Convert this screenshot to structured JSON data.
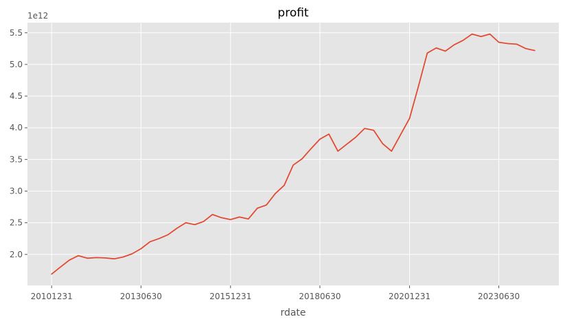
{
  "chart_data": {
    "type": "line",
    "title": "profit",
    "xlabel": "rdate",
    "ylabel": "",
    "y_offset_label": "1e12",
    "x_tick_labels": [
      "20101231",
      "20130630",
      "20151231",
      "20180630",
      "20201231",
      "20230630"
    ],
    "y_tick_labels": [
      "2.0",
      "2.5",
      "3.0",
      "3.5",
      "4.0",
      "4.5",
      "5.0",
      "5.5"
    ],
    "ylim": [
      1.51,
      5.66
    ],
    "grid": true,
    "series": [
      {
        "color": "#e24a33",
        "x": [
          "20101231",
          "20110331",
          "20110630",
          "20110930",
          "20111231",
          "20120331",
          "20120630",
          "20120930",
          "20121231",
          "20130331",
          "20130630",
          "20130930",
          "20131231",
          "20140331",
          "20140630",
          "20140930",
          "20141231",
          "20150331",
          "20150630",
          "20150930",
          "20151231",
          "20160331",
          "20160630",
          "20160930",
          "20161231",
          "20170331",
          "20170630",
          "20170930",
          "20171231",
          "20180331",
          "20180630",
          "20180930",
          "20181231",
          "20190331",
          "20190630",
          "20190930",
          "20191231",
          "20200331",
          "20200630",
          "20200930",
          "20201231",
          "20210331",
          "20210630",
          "20210930",
          "20211231",
          "20220331",
          "20220630",
          "20220930",
          "20221231",
          "20230331",
          "20230630",
          "20230930",
          "20231231",
          "20240331",
          "20240630"
        ],
        "values": [
          1.69,
          1.8,
          1.91,
          1.98,
          1.94,
          1.95,
          1.945,
          1.93,
          1.96,
          2.01,
          2.09,
          2.2,
          2.25,
          2.31,
          2.41,
          2.5,
          2.47,
          2.52,
          2.63,
          2.58,
          2.55,
          2.59,
          2.56,
          2.73,
          2.78,
          2.96,
          3.09,
          3.41,
          3.51,
          3.67,
          3.82,
          3.9,
          3.63,
          3.74,
          3.85,
          3.99,
          3.96,
          3.75,
          3.63,
          3.89,
          4.15,
          4.65,
          5.18,
          5.26,
          5.21,
          5.31,
          5.38,
          5.48,
          5.44,
          5.48,
          5.35,
          5.33,
          5.32,
          5.25,
          5.22
        ]
      }
    ]
  }
}
